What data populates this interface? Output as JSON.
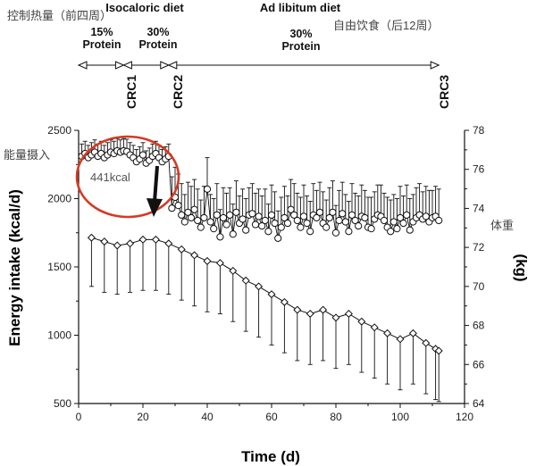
{
  "labels": {
    "control_cn": "控制热量（前四周）",
    "adlib_cn": "自由饮食（后12周）",
    "energy_cn": "能量摄入",
    "weight_cn": "体重",
    "isocaloric": "Isocaloric diet",
    "adlib": "Ad libitum diet",
    "p15_pct": "15%",
    "p15_word": "Protein",
    "p30a_pct": "30%",
    "p30a_word": "Protein",
    "p30b_pct": "30%",
    "p30b_word": "Protein",
    "crc1": "CRC1",
    "crc2": "CRC2",
    "crc3": "CRC3",
    "annotation": "441kcal"
  },
  "chart_data": {
    "type": "line",
    "xlabel": "Time (d)",
    "ylabel": "Energy intake (kcal/d)",
    "y2label": "(kg)",
    "xlim": [
      0,
      120
    ],
    "ylim": [
      500,
      2500
    ],
    "y2lim": [
      64,
      78
    ],
    "xticks": [
      0,
      20,
      40,
      60,
      80,
      100,
      120
    ],
    "yticks": [
      500,
      1000,
      1500,
      2000,
      2500
    ],
    "y2ticks": [
      64,
      66,
      68,
      70,
      72,
      74,
      76,
      78
    ],
    "phase_markers_days": [
      14,
      28,
      112
    ],
    "series": [
      {
        "id": "energy",
        "marker": "circle",
        "axis": "left",
        "x": [
          1,
          2,
          3,
          4,
          5,
          6,
          7,
          8,
          9,
          10,
          11,
          12,
          13,
          14,
          15,
          16,
          17,
          18,
          19,
          20,
          21,
          22,
          23,
          24,
          25,
          26,
          27,
          28,
          29,
          30,
          31,
          32,
          33,
          34,
          35,
          36,
          37,
          38,
          39,
          40,
          41,
          42,
          43,
          44,
          45,
          46,
          47,
          48,
          49,
          50,
          51,
          52,
          53,
          54,
          55,
          56,
          57,
          58,
          59,
          60,
          61,
          62,
          63,
          64,
          65,
          66,
          67,
          68,
          69,
          70,
          71,
          72,
          73,
          74,
          75,
          76,
          77,
          78,
          79,
          80,
          81,
          82,
          83,
          84,
          85,
          86,
          87,
          88,
          89,
          90,
          91,
          92,
          93,
          94,
          95,
          96,
          97,
          98,
          99,
          100,
          101,
          102,
          103,
          104,
          105,
          106,
          107,
          108,
          109,
          110,
          111,
          112
        ],
        "y": [
          2310,
          2330,
          2300,
          2320,
          2340,
          2310,
          2330,
          2300,
          2320,
          2340,
          2330,
          2350,
          2340,
          2350,
          2345,
          2320,
          2300,
          2270,
          2290,
          2320,
          2260,
          2280,
          2310,
          2330,
          2300,
          2270,
          2290,
          2310,
          1930,
          2010,
          1950,
          1880,
          1830,
          1900,
          1860,
          1920,
          1840,
          1790,
          1860,
          2070,
          1830,
          1780,
          1880,
          1720,
          1860,
          1810,
          1880,
          1740,
          1900,
          1820,
          1850,
          1770,
          1880,
          1890,
          1810,
          1870,
          1800,
          1840,
          1760,
          1880,
          1820,
          1710,
          1790,
          1860,
          1820,
          1920,
          1880,
          1840,
          1790,
          1870,
          1820,
          1760,
          1880,
          1860,
          1900,
          1820,
          1790,
          1860,
          1900,
          1750,
          1840,
          1890,
          1830,
          1760,
          1880,
          1840,
          1800,
          1870,
          1860,
          1790,
          1780,
          1850,
          1880,
          1870,
          1840,
          1790,
          1760,
          1830,
          1780,
          1860,
          1820,
          1880,
          1770,
          1830,
          1860,
          1880,
          1850,
          1870,
          1830,
          1860,
          1870,
          1840
        ],
        "err": [
          90,
          90,
          90,
          90,
          90,
          90,
          90,
          90,
          90,
          90,
          90,
          90,
          90,
          90,
          90,
          90,
          90,
          90,
          90,
          90,
          90,
          90,
          90,
          90,
          90,
          90,
          90,
          90,
          230,
          220,
          230,
          230,
          200,
          220,
          230,
          220,
          230,
          200,
          230,
          230,
          200,
          220,
          230,
          200,
          220,
          230,
          200,
          220,
          230,
          200,
          220,
          230,
          200,
          220,
          230,
          200,
          220,
          230,
          200,
          220,
          230,
          200,
          220,
          230,
          200,
          220,
          230,
          200,
          220,
          230,
          200,
          220,
          230,
          200,
          220,
          230,
          200,
          220,
          230,
          200,
          220,
          230,
          200,
          220,
          230,
          200,
          220,
          230,
          200,
          220,
          230,
          200,
          220,
          230,
          200,
          220,
          230,
          200,
          220,
          230,
          200,
          220,
          230,
          200,
          220,
          230,
          200,
          220,
          230,
          200,
          220,
          230
        ]
      },
      {
        "id": "weight",
        "marker": "diamond",
        "axis": "right",
        "x": [
          4,
          8,
          12,
          16,
          20,
          24,
          28,
          32,
          36,
          40,
          44,
          48,
          52,
          56,
          60,
          64,
          68,
          72,
          76,
          80,
          84,
          88,
          92,
          96,
          100,
          104,
          108,
          111,
          112
        ],
        "y": [
          72.5,
          72.3,
          72.1,
          72.2,
          72.4,
          72.4,
          72.2,
          71.9,
          71.6,
          71.3,
          71.2,
          70.8,
          70.3,
          70.0,
          69.6,
          69.2,
          68.8,
          68.6,
          68.8,
          68.4,
          68.6,
          68.2,
          67.9,
          67.6,
          67.3,
          67.6,
          67.1,
          66.8,
          66.7
        ],
        "err": [
          2.5,
          2.6,
          2.5,
          2.5,
          2.6,
          2.6,
          2.6,
          2.6,
          2.6,
          2.6,
          2.6,
          2.6,
          2.6,
          2.6,
          2.6,
          2.6,
          2.6,
          2.6,
          2.6,
          2.6,
          2.6,
          2.6,
          2.6,
          2.6,
          2.6,
          2.6,
          2.6,
          2.6,
          2.6
        ]
      }
    ]
  },
  "colors": {
    "ink": "#111111",
    "highlight": "#d63a22",
    "annotation_text": "#555555"
  }
}
